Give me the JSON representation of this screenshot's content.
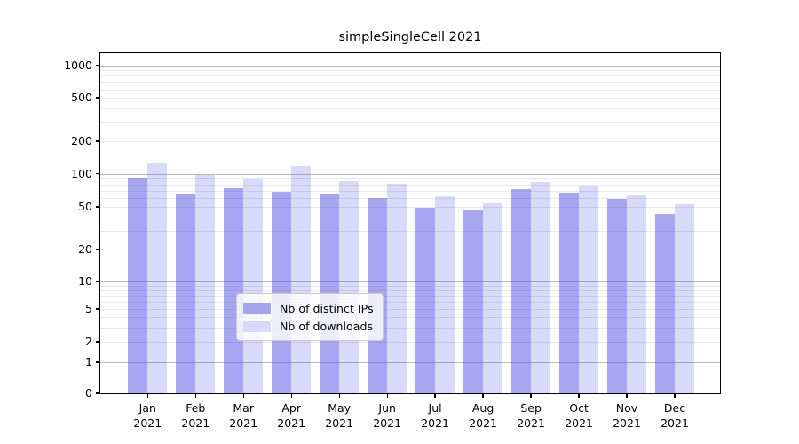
{
  "title": "simpleSingleCell 2021",
  "colors": {
    "ips_bar": "rgba(78,78,228,0.50)",
    "downloads_bar": "rgba(78,78,228,0.215)",
    "ips_swatch": "#a5a5f0",
    "downloads_swatch": "#d9d9f9",
    "grid_major": "#b9b9b9",
    "grid_minor": "#e9e9e9"
  },
  "legend": {
    "items": [
      {
        "label": "Nb of distinct IPs"
      },
      {
        "label": "Nb of downloads"
      }
    ]
  },
  "y_axis": {
    "tick_labels": [
      "0",
      "1",
      "2",
      "5",
      "10",
      "20",
      "50",
      "100",
      "200",
      "500",
      "1000"
    ]
  },
  "x_axis": {
    "months": [
      "Jan",
      "Feb",
      "Mar",
      "Apr",
      "May",
      "Jun",
      "Jul",
      "Aug",
      "Sep",
      "Oct",
      "Nov",
      "Dec"
    ],
    "year": "2021"
  },
  "chart_data": {
    "type": "bar",
    "title": "simpleSingleCell 2021",
    "categories": [
      "Jan 2021",
      "Feb 2021",
      "Mar 2021",
      "Apr 2021",
      "May 2021",
      "Jun 2021",
      "Jul 2021",
      "Aug 2021",
      "Sep 2021",
      "Oct 2021",
      "Nov 2021",
      "Dec 2021"
    ],
    "series": [
      {
        "name": "Nb of distinct IPs",
        "values": [
          90,
          65,
          74,
          69,
          65,
          60,
          49,
          46,
          73,
          67,
          59,
          43
        ]
      },
      {
        "name": "Nb of downloads",
        "values": [
          127,
          98,
          88,
          117,
          85,
          81,
          63,
          54,
          84,
          78,
          64,
          53
        ]
      }
    ],
    "yscale": "symlog",
    "y_ticks": [
      0,
      1,
      2,
      5,
      10,
      20,
      50,
      100,
      200,
      500,
      1000
    ],
    "minor_grid_values": [
      2,
      3,
      4,
      5,
      6,
      7,
      8,
      9,
      20,
      30,
      40,
      50,
      60,
      70,
      80,
      90,
      200,
      300,
      400,
      500,
      600,
      700,
      800,
      900
    ],
    "major_grid_values": [
      1,
      10,
      100,
      1000
    ],
    "ylim": [
      0,
      1400
    ],
    "grid": true,
    "legend_position": "lower center"
  }
}
